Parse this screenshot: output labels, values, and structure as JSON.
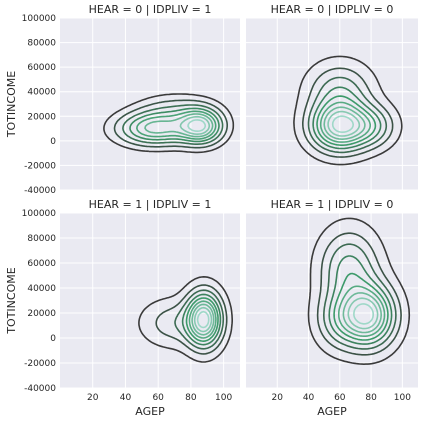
{
  "chart_data": {
    "type": "kde-contour-grid",
    "xlabel": "AGEP",
    "ylabel": "TOTINCOME",
    "xlim": [
      0,
      110
    ],
    "ylim": [
      -40000,
      100000
    ],
    "xticks": [
      20,
      40,
      60,
      80,
      100
    ],
    "yticks": [
      -40000,
      -20000,
      0,
      20000,
      40000,
      60000,
      80000,
      100000
    ],
    "grid": true,
    "panels": [
      {
        "title": "HEAR = 0 | IDPLIV = 1",
        "row": 0,
        "col": 0,
        "show_ylabel": true,
        "show_xlabel": false,
        "components": [
          {
            "cx": 58,
            "cy": 10000,
            "sx": 15,
            "sy": 9000,
            "w": 1.0
          },
          {
            "cx": 86,
            "cy": 12000,
            "sx": 9,
            "sy": 9500,
            "w": 1.2
          },
          {
            "cx": 70,
            "cy": 25000,
            "sx": 15,
            "sy": 9000,
            "w": 0.3
          }
        ],
        "levels": [
          0.08,
          0.18,
          0.3,
          0.42,
          0.54,
          0.66,
          0.78,
          0.9
        ]
      },
      {
        "title": "HEAR = 0 | IDPLIV = 0",
        "row": 0,
        "col": 1,
        "show_ylabel": false,
        "show_xlabel": false,
        "components": [
          {
            "cx": 60,
            "cy": 12000,
            "sx": 12,
            "sy": 13000,
            "w": 1.0
          },
          {
            "cx": 60,
            "cy": 40000,
            "sx": 13,
            "sy": 15000,
            "w": 0.35
          },
          {
            "cx": 80,
            "cy": 12000,
            "sx": 10,
            "sy": 11000,
            "w": 0.35
          }
        ],
        "levels": [
          0.05,
          0.14,
          0.24,
          0.35,
          0.46,
          0.57,
          0.68,
          0.79,
          0.9
        ]
      },
      {
        "title": "HEAR = 1 | IDPLIV = 1",
        "row": 1,
        "col": 0,
        "show_ylabel": true,
        "show_xlabel": true,
        "components": [
          {
            "cx": 88,
            "cy": 15000,
            "sx": 7,
            "sy": 14000,
            "w": 1.0
          },
          {
            "cx": 70,
            "cy": 12000,
            "sx": 13,
            "sy": 12000,
            "w": 0.22
          }
        ],
        "levels": [
          0.05,
          0.14,
          0.24,
          0.35,
          0.46,
          0.57,
          0.68,
          0.79,
          0.9
        ]
      },
      {
        "title": "HEAR = 1 | IDPLIV = 0",
        "row": 1,
        "col": 1,
        "show_ylabel": false,
        "show_xlabel": true,
        "components": [
          {
            "cx": 78,
            "cy": 18000,
            "sx": 11,
            "sy": 16000,
            "w": 1.0
          },
          {
            "cx": 66,
            "cy": 55000,
            "sx": 12,
            "sy": 20000,
            "w": 0.45
          },
          {
            "cx": 60,
            "cy": 15000,
            "sx": 10,
            "sy": 15000,
            "w": 0.35
          }
        ],
        "levels": [
          0.05,
          0.14,
          0.24,
          0.35,
          0.46,
          0.57,
          0.68,
          0.79,
          0.9
        ]
      }
    ],
    "colors": {
      "panel_bg": "#eaeaf2",
      "grid": "#ffffff",
      "contour_low": "#3a3a3a",
      "contour_mid": "#3d9a6a",
      "contour_high": "#9fd8c8"
    }
  }
}
